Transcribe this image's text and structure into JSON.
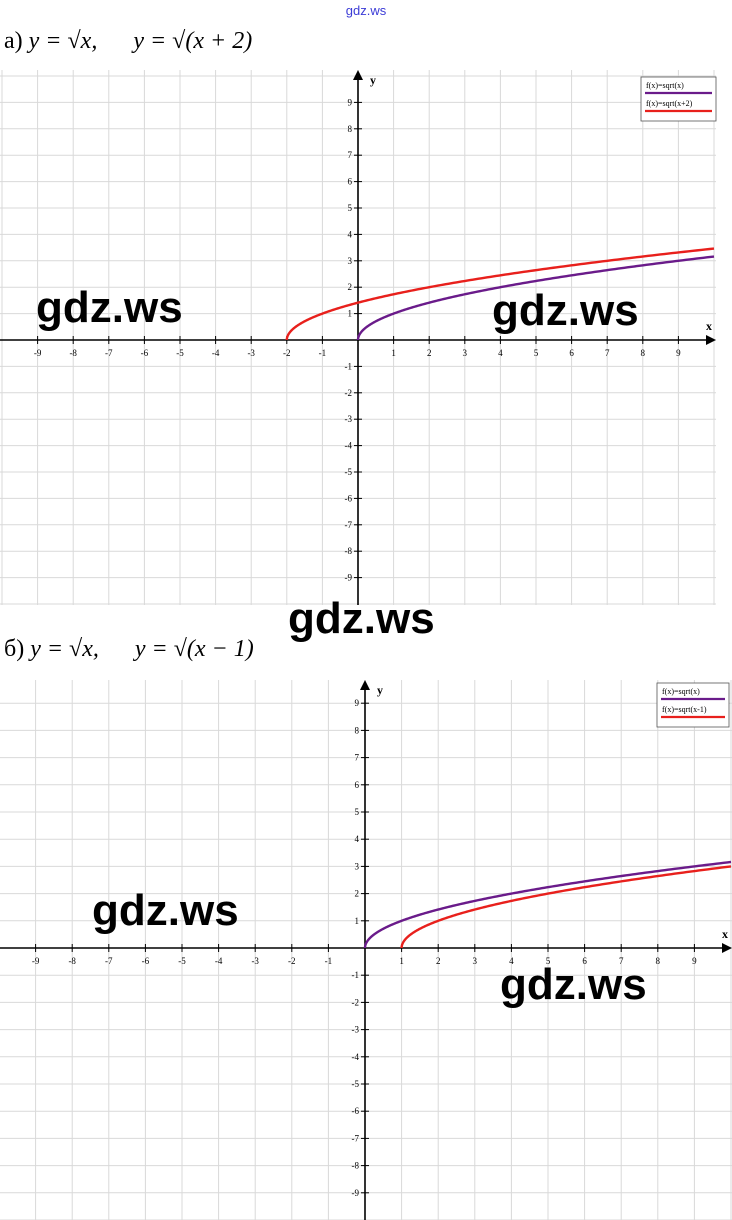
{
  "header": {
    "link_text": "gdz.ws"
  },
  "watermark": "gdz.ws",
  "chart_data": [
    {
      "label": "а)",
      "title_left": "y = √x,",
      "title_right": "y = √(x + 2)",
      "type": "line",
      "xlabel": "x",
      "ylabel": "y",
      "xlim": [
        -10,
        10
      ],
      "ylim": [
        -10,
        10
      ],
      "x_ticks": [
        -9,
        -8,
        -7,
        -6,
        -5,
        -4,
        -3,
        -2,
        -1,
        1,
        2,
        3,
        4,
        5,
        6,
        7,
        8,
        9
      ],
      "y_ticks": [
        9,
        8,
        7,
        6,
        5,
        4,
        3,
        2,
        1,
        -1,
        -2,
        -3,
        -4,
        -5,
        -6,
        -7,
        -8,
        -9
      ],
      "grid": true,
      "legend_position": "top-right",
      "series": [
        {
          "name": "f(x)=sqrt(x)",
          "color": "#6a1b8a",
          "x_start": 0,
          "x_end": 10,
          "shift": 0
        },
        {
          "name": "f(x)=sqrt(x+2)",
          "color": "#e8201c",
          "x_start": -2,
          "x_end": 10,
          "shift": 2
        }
      ]
    },
    {
      "label": "б)",
      "title_left": "y = √x,",
      "title_right": "y = √(x − 1)",
      "type": "line",
      "xlabel": "x",
      "ylabel": "y",
      "xlim": [
        -10,
        10
      ],
      "ylim": [
        -10,
        10
      ],
      "x_ticks": [
        -9,
        -8,
        -7,
        -6,
        -5,
        -4,
        -3,
        -2,
        -1,
        1,
        2,
        3,
        4,
        5,
        6,
        7,
        8,
        9
      ],
      "y_ticks": [
        9,
        8,
        7,
        6,
        5,
        4,
        3,
        2,
        1,
        -1,
        -2,
        -3,
        -4,
        -5,
        -6,
        -7,
        -8,
        -9
      ],
      "grid": true,
      "legend_position": "top-right",
      "series": [
        {
          "name": "f(x)=sqrt(x)",
          "color": "#6a1b8a",
          "x_start": 0,
          "x_end": 10,
          "shift": 0
        },
        {
          "name": "f(x)=sqrt(x-1)",
          "color": "#e8201c",
          "x_start": 1,
          "x_end": 10,
          "shift": -1
        }
      ]
    }
  ]
}
